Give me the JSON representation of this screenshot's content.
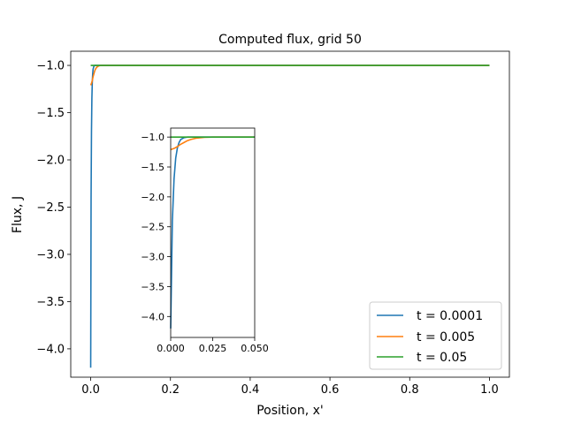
{
  "chart_data": [
    {
      "type": "line",
      "title": "Computed flux, grid 50",
      "xlabel": "Position, x'",
      "ylabel": "Flux, J",
      "xlim": [
        -0.05,
        1.05
      ],
      "ylim": [
        -4.3,
        -0.85
      ],
      "xticks": [
        0.0,
        0.2,
        0.4,
        0.6,
        0.8,
        1.0
      ],
      "xtick_labels": [
        "0.0",
        "0.2",
        "0.4",
        "0.6",
        "0.8",
        "1.0"
      ],
      "yticks": [
        -1.0,
        -1.5,
        -2.0,
        -2.5,
        -3.0,
        -3.5,
        -4.0
      ],
      "ytick_labels": [
        "−1.0",
        "−1.5",
        "−2.0",
        "−2.5",
        "−3.0",
        "−3.5",
        "−4.0"
      ],
      "grid": false,
      "legend": "lower-right",
      "series": [
        {
          "name": "t = 0.0001",
          "color": "#1f77b4",
          "x": [
            0.0,
            0.001,
            0.002,
            0.003,
            0.004,
            0.005,
            0.006,
            0.008,
            0.01,
            0.02,
            0.05,
            1.0
          ],
          "y": [
            -4.2,
            -2.4,
            -1.7,
            -1.35,
            -1.18,
            -1.09,
            -1.04,
            -1.01,
            -1.0,
            -1.0,
            -1.0,
            -1.0
          ]
        },
        {
          "name": "t = 0.005",
          "color": "#ff7f0e",
          "x": [
            0.0,
            0.002,
            0.004,
            0.006,
            0.008,
            0.01,
            0.012,
            0.015,
            0.02,
            0.025,
            0.05,
            1.0
          ],
          "y": [
            -1.21,
            -1.19,
            -1.16,
            -1.12,
            -1.09,
            -1.06,
            -1.04,
            -1.02,
            -1.005,
            -1.0,
            -1.0,
            -1.0
          ]
        },
        {
          "name": "t = 0.05",
          "color": "#2ca02c",
          "x": [
            0.0,
            0.05,
            1.0
          ],
          "y": [
            -1.0,
            -1.0,
            -1.0
          ]
        }
      ]
    },
    {
      "type": "line",
      "title": "",
      "xlabel": "",
      "ylabel": "",
      "xlim": [
        0.0,
        0.05
      ],
      "ylim": [
        -4.35,
        -0.85
      ],
      "xticks": [
        0.0,
        0.025,
        0.05
      ],
      "xtick_labels": [
        "0.000",
        "0.025",
        "0.050"
      ],
      "yticks": [
        -1.0,
        -1.5,
        -2.0,
        -2.5,
        -3.0,
        -3.5,
        -4.0
      ],
      "ytick_labels": [
        "−1.0",
        "−1.5",
        "−2.0",
        "−2.5",
        "−3.0",
        "−3.5",
        "−4.0"
      ],
      "grid": false,
      "series": [
        {
          "color": "#1f77b4",
          "x": [
            0.0,
            0.001,
            0.002,
            0.003,
            0.004,
            0.005,
            0.006,
            0.008,
            0.01,
            0.02,
            0.05
          ],
          "y": [
            -4.2,
            -2.4,
            -1.7,
            -1.35,
            -1.18,
            -1.09,
            -1.04,
            -1.01,
            -1.0,
            -1.0,
            -1.0
          ]
        },
        {
          "color": "#ff7f0e",
          "x": [
            0.0,
            0.002,
            0.004,
            0.006,
            0.008,
            0.01,
            0.012,
            0.015,
            0.02,
            0.025,
            0.05
          ],
          "y": [
            -1.21,
            -1.19,
            -1.16,
            -1.12,
            -1.09,
            -1.06,
            -1.04,
            -1.02,
            -1.005,
            -1.0,
            -1.0
          ]
        },
        {
          "color": "#2ca02c",
          "x": [
            0.0,
            0.05
          ],
          "y": [
            -1.0,
            -1.0
          ]
        }
      ]
    }
  ]
}
